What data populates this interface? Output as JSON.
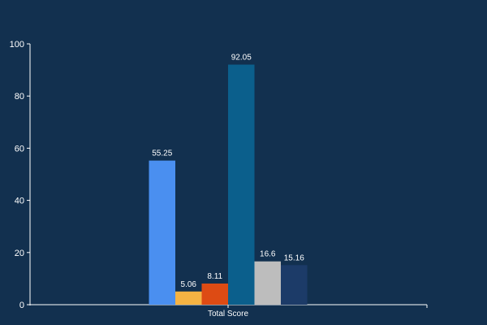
{
  "chart_data": {
    "type": "bar",
    "categories": [
      "Total Score"
    ],
    "series": [
      {
        "values": [
          55.25
        ],
        "value_label": "55.25",
        "color": "#4a8ff0"
      },
      {
        "values": [
          5.06
        ],
        "value_label": "5.06",
        "color": "#f5b343"
      },
      {
        "values": [
          8.11
        ],
        "value_label": "8.11",
        "color": "#dd4b14"
      },
      {
        "values": [
          92.05
        ],
        "value_label": "92.05",
        "color": "#0b5f8c"
      },
      {
        "values": [
          16.6
        ],
        "value_label": "16.6",
        "color": "#bdbdbd"
      },
      {
        "values": [
          15.16
        ],
        "value_label": "15.16",
        "color": "#1c3b68"
      }
    ],
    "ylim": [
      0,
      100
    ],
    "yticks": [
      0,
      20,
      40,
      60,
      80,
      100
    ],
    "title": "",
    "xlabel": "",
    "ylabel": "",
    "grid": false,
    "legend": "none",
    "colors": {
      "background": "#12304f",
      "axis": "#ffffff",
      "text": "#ffffff"
    }
  }
}
